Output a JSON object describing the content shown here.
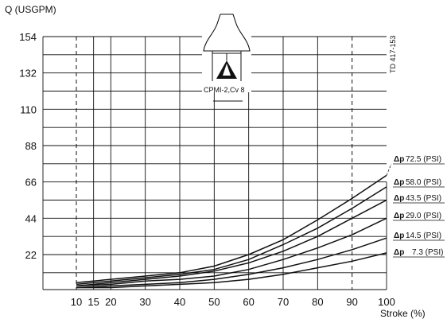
{
  "chart_data": {
    "type": "line",
    "ylabel": "Q (USGPM)",
    "xlabel": "Stroke (%)",
    "doc_id": "TD 417-153",
    "inset_label": "CPMI-2,Cv 8",
    "xlim": [
      0,
      100
    ],
    "ylim": [
      0,
      165
    ],
    "x_ticks": [
      10,
      15,
      20,
      30,
      40,
      50,
      60,
      70,
      80,
      90,
      100
    ],
    "y_ticks": [
      22,
      44,
      66,
      88,
      110,
      132,
      154
    ],
    "x_tick_labels": [
      "10",
      "15",
      "20",
      "30",
      "40",
      "50",
      "60",
      "70",
      "80",
      "90",
      "100"
    ],
    "y_tick_labels": [
      "22",
      "44",
      "66",
      "88",
      "110",
      "132",
      "154"
    ],
    "dashed_x": [
      10,
      90
    ],
    "x": [
      10,
      20,
      30,
      40,
      50,
      60,
      70,
      80,
      90,
      100
    ],
    "series": [
      {
        "name": "Δp 72.5 (PSI)",
        "label_prefix": "Δp",
        "label_value": "72.5 (PSI)",
        "values": [
          5,
          7,
          9,
          11,
          15,
          22,
          31,
          43,
          56,
          70
        ]
      },
      {
        "name": "Δp 58.0 (PSI)",
        "label_prefix": "Δp",
        "label_value": "58.0 (PSI)",
        "values": [
          4,
          6,
          8,
          10,
          13,
          19,
          28,
          38,
          50,
          63
        ]
      },
      {
        "name": "Δp 43.5 (PSI)",
        "label_prefix": "Δp",
        "label_value": "43.5 (PSI)",
        "values": [
          3,
          5,
          7,
          9,
          12,
          17,
          24,
          33,
          44,
          55
        ]
      },
      {
        "name": "Δp 29.0 (PSI)",
        "label_prefix": "Δp",
        "label_value": "29.0 (PSI)",
        "values": [
          3,
          4,
          6,
          7,
          9,
          13,
          19,
          26,
          34,
          44
        ]
      },
      {
        "name": "Δp 14.5 (PSI)",
        "label_prefix": "Δp",
        "label_value": "14.5 (PSI)",
        "values": [
          2,
          3,
          4,
          5,
          7,
          10,
          14,
          19,
          25,
          32
        ]
      },
      {
        "name": "Δp 7.3 (PSI)",
        "label_prefix": "Δp",
        "label_value": "7.3 (PSI)",
        "values": [
          2,
          2,
          3,
          4,
          5,
          7,
          10,
          14,
          18,
          23
        ]
      }
    ]
  }
}
